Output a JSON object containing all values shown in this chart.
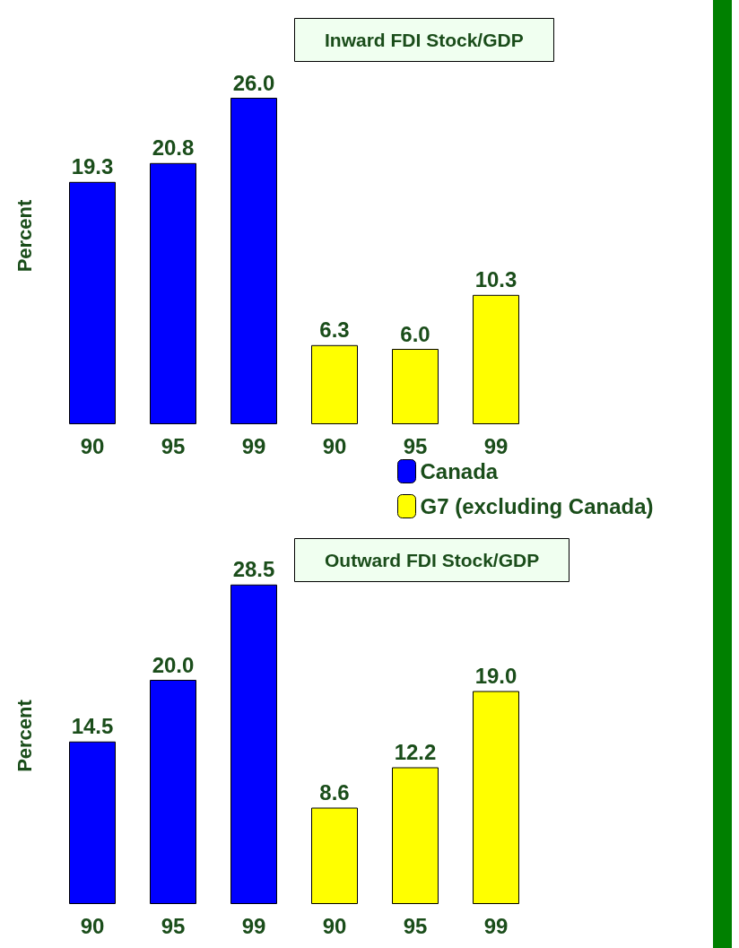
{
  "chart_data": [
    {
      "type": "bar",
      "title": "Inward FDI Stock/GDP",
      "ylabel": "Percent",
      "categories": [
        "90",
        "95",
        "99",
        "90",
        "95",
        "99"
      ],
      "series": [
        {
          "name": "Canada",
          "color": "#0000ff",
          "values": [
            19.3,
            20.8,
            26.0,
            null,
            null,
            null
          ],
          "value_labels": [
            "19.3",
            "20.8",
            "26.0",
            null,
            null,
            null
          ]
        },
        {
          "name": "G7 (excluding Canada)",
          "color": "#ffff00",
          "values": [
            null,
            null,
            null,
            6.3,
            6.0,
            10.3
          ],
          "value_labels": [
            null,
            null,
            null,
            "6.3",
            "6.0",
            "10.3"
          ]
        }
      ],
      "grid": false,
      "legend": "bottom"
    },
    {
      "type": "bar",
      "title": "Outward FDI Stock/GDP",
      "ylabel": "Percent",
      "categories": [
        "90",
        "95",
        "99",
        "90",
        "95",
        "99"
      ],
      "series": [
        {
          "color": "#0000ff",
          "values": [
            14.5,
            20.0,
            28.5,
            null,
            null,
            null
          ],
          "value_labels": [
            "14.5",
            "20.0",
            "28.5",
            null,
            null,
            null
          ]
        },
        {
          "color": "#ffff00",
          "values": [
            null,
            null,
            null,
            8.6,
            12.2,
            19.0
          ],
          "value_labels": [
            null,
            null,
            null,
            "8.6",
            "12.2",
            "19.0"
          ]
        }
      ],
      "grid": false
    }
  ]
}
